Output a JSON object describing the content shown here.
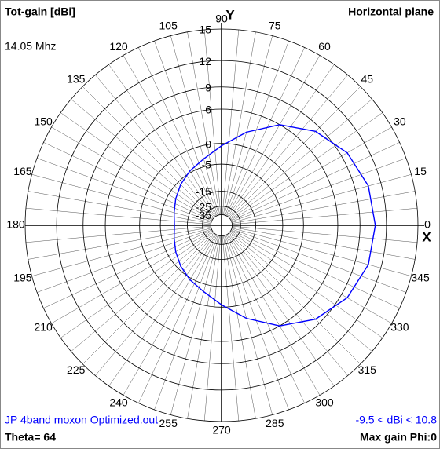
{
  "chart_data": {
    "type": "polar",
    "title": "Tot-gain [dBi]",
    "subtitle": "Horizontal plane",
    "frequency": "14.05 Mhz",
    "file_label": "JP 4band moxon Optimized.out",
    "range_label": "-9.5 < dBi < 10.8",
    "theta_label": "Theta= 64",
    "max_gain_label": "Max gain Phi:0",
    "x_axis_label": "X",
    "y_axis_label": "Y",
    "color": "#0000ff",
    "rlim": [
      -35,
      15
    ],
    "rticks": [
      15,
      12,
      9,
      6,
      0,
      -5,
      -15,
      -25,
      -35
    ],
    "thetaticks": [
      0,
      15,
      30,
      45,
      60,
      75,
      90,
      105,
      120,
      135,
      150,
      165,
      180,
      195,
      210,
      225,
      240,
      255,
      270,
      285,
      300,
      315,
      330,
      345
    ],
    "theta": [
      0,
      15,
      30,
      45,
      60,
      75,
      90,
      105,
      120,
      135,
      150,
      165,
      180,
      195,
      210,
      225,
      240,
      255,
      270,
      285,
      300,
      315,
      330,
      345
    ],
    "values": [
      10.8,
      10.6,
      9.8,
      8.3,
      6,
      2.8,
      -0.5,
      -3,
      -4.5,
      -6,
      -7.5,
      -8.8,
      -9.5,
      -8.8,
      -7.5,
      -6,
      -4.5,
      -3,
      -0.5,
      2.8,
      6,
      8.3,
      9.8,
      10.6
    ]
  }
}
